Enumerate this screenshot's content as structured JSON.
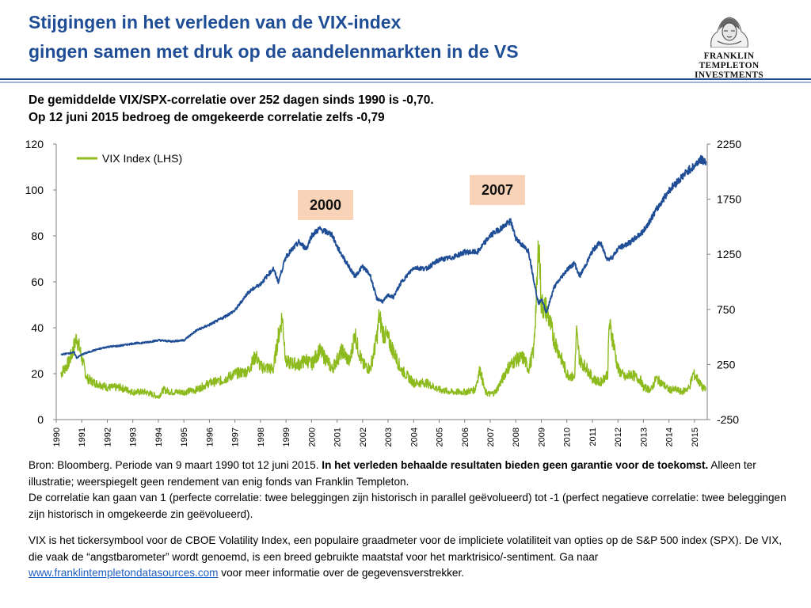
{
  "header": {
    "title_line1": "Stijgingen in het verleden van de VIX-index",
    "title_line2": "gingen samen met druk op de aandelenmarkten in de VS",
    "logo_line1": "FRANKLIN TEMPLETON",
    "logo_line2": "INVESTMENTS"
  },
  "subtitle": {
    "line1": "De gemiddelde VIX/SPX-correlatie  over 252 dagen sinds 1990 is -0,70.",
    "line2": "Op 12 juni 2015 bedroeg de omgekeerde correlatie zelfs -0,79"
  },
  "chart_data": {
    "type": "line",
    "legend": [
      "VIX Index  (LHS)"
    ],
    "legend_position": "top-left",
    "x_ticks": [
      "1990",
      "1991",
      "1992",
      "1993",
      "1994",
      "1995",
      "1996",
      "1997",
      "1998",
      "1999",
      "2000",
      "2001",
      "2002",
      "2003",
      "2004",
      "2005",
      "2006",
      "2007",
      "2008",
      "2009",
      "2010",
      "2011",
      "2012",
      "2013",
      "2014",
      "2015"
    ],
    "y_left": {
      "ticks": [
        0,
        20,
        40,
        60,
        80,
        100,
        120
      ],
      "range": [
        0,
        120
      ]
    },
    "y_right": {
      "ticks": [
        -250,
        250,
        750,
        1250,
        1750,
        2250
      ],
      "range": [
        -250,
        2250
      ]
    },
    "annotations": [
      "2000",
      "2007"
    ],
    "colors": {
      "vix": "#8dbb1e",
      "spx": "#1f4e96"
    },
    "series": [
      {
        "name": "VIX Index  (LHS)",
        "axis": "left",
        "x": [
          1990.18,
          1990.5,
          1990.65,
          1990.8,
          1991.0,
          1991.2,
          1991.5,
          1991.8,
          1992.0,
          1992.5,
          1993.0,
          1993.5,
          1994.0,
          1994.2,
          1994.5,
          1995.0,
          1995.5,
          1996.0,
          1996.5,
          1997.0,
          1997.5,
          1997.82,
          1998.0,
          1998.5,
          1998.7,
          1998.85,
          1999.0,
          1999.5,
          1999.8,
          2000.0,
          2000.3,
          2000.6,
          2000.8,
          2001.0,
          2001.2,
          2001.5,
          2001.7,
          2001.8,
          2002.0,
          2002.3,
          2002.55,
          2002.65,
          2002.8,
          2003.0,
          2003.2,
          2003.5,
          2004.0,
          2004.5,
          2005.0,
          2005.5,
          2005.8,
          2006.0,
          2006.4,
          2006.6,
          2006.8,
          2007.0,
          2007.2,
          2007.5,
          2007.65,
          2007.9,
          2008.0,
          2008.3,
          2008.5,
          2008.7,
          2008.84,
          2008.9,
          2009.0,
          2009.2,
          2009.5,
          2009.8,
          2010.0,
          2010.3,
          2010.38,
          2010.5,
          2010.8,
          2011.0,
          2011.3,
          2011.6,
          2011.66,
          2011.8,
          2012.0,
          2012.3,
          2012.5,
          2012.9,
          2013.0,
          2013.3,
          2013.5,
          2013.9,
          2014.0,
          2014.3,
          2014.5,
          2014.8,
          2014.95,
          2015.1,
          2015.3,
          2015.45
        ],
        "y": [
          20,
          25,
          30,
          36,
          27,
          18,
          16,
          15,
          14,
          14,
          12,
          12,
          10,
          13,
          12,
          12,
          13,
          16,
          17,
          20,
          21,
          28,
          23,
          22,
          36,
          45,
          25,
          24,
          26,
          24,
          30,
          26,
          22,
          26,
          30,
          25,
          38,
          32,
          24,
          22,
          35,
          45,
          38,
          35,
          30,
          22,
          16,
          16,
          13,
          12,
          12,
          12,
          13,
          22,
          12,
          11,
          12,
          18,
          22,
          25,
          26,
          27,
          22,
          30,
          60,
          80,
          50,
          48,
          35,
          26,
          20,
          18,
          38,
          26,
          22,
          18,
          16,
          20,
          42,
          35,
          22,
          18,
          20,
          17,
          14,
          13,
          18,
          14,
          13,
          13,
          12,
          14,
          20,
          18,
          14,
          13
        ]
      },
      {
        "name": "SPX",
        "axis": "right",
        "x": [
          1990.18,
          1990.7,
          1990.8,
          1991.0,
          1991.5,
          1992.0,
          1992.5,
          1993.0,
          1993.5,
          1994.0,
          1994.5,
          1995.0,
          1995.5,
          1996.0,
          1996.5,
          1997.0,
          1997.5,
          1997.8,
          1998.0,
          1998.5,
          1998.7,
          1999.0,
          1999.5,
          1999.8,
          2000.0,
          2000.3,
          2000.6,
          2000.8,
          2001.0,
          2001.3,
          2001.7,
          2002.0,
          2002.3,
          2002.55,
          2002.8,
          2003.0,
          2003.2,
          2003.5,
          2004.0,
          2004.5,
          2005.0,
          2005.5,
          2006.0,
          2006.5,
          2007.0,
          2007.5,
          2007.8,
          2008.0,
          2008.3,
          2008.5,
          2008.8,
          2008.9,
          2009.0,
          2009.2,
          2009.5,
          2010.0,
          2010.3,
          2010.5,
          2010.8,
          2011.0,
          2011.3,
          2011.6,
          2011.8,
          2012.0,
          2012.5,
          2013.0,
          2013.5,
          2014.0,
          2014.5,
          2014.8,
          2015.0,
          2015.2,
          2015.45
        ],
        "y": [
          340,
          360,
          310,
          340,
          380,
          410,
          420,
          440,
          450,
          470,
          460,
          470,
          560,
          610,
          670,
          740,
          900,
          950,
          980,
          1120,
          1000,
          1230,
          1360,
          1300,
          1420,
          1480,
          1450,
          1430,
          1320,
          1200,
          1050,
          1140,
          1060,
          850,
          820,
          880,
          860,
          990,
          1130,
          1120,
          1200,
          1220,
          1270,
          1270,
          1420,
          1500,
          1550,
          1400,
          1320,
          1280,
          900,
          800,
          850,
          720,
          950,
          1110,
          1170,
          1050,
          1180,
          1280,
          1360,
          1200,
          1230,
          1300,
          1360,
          1460,
          1650,
          1830,
          1950,
          2020,
          2050,
          2110,
          2095
        ]
      }
    ]
  },
  "footer": {
    "source_prefix": "Bron: Bloomberg.  Periode van 9 maart 1990 tot 12 juni 2015. ",
    "source_bold": "In het verleden behaalde resultaten bieden geen garantie voor de toekomst.",
    "source_suffix": " Alleen ter illustratie; weerspiegelt geen rendement van enig fonds van Franklin Templeton.",
    "correlation_note": "De correlatie kan gaan van 1 (perfecte correlatie: twee beleggingen zijn historisch in parallel geëvolueerd) tot -1 (perfect negatieve correlatie: twee beleggingen zijn historisch in omgekeerde zin geëvolueerd).",
    "vix_note_prefix": "VIX is het tickersymbool voor de CBOE  Volatility Index, een populaire graadmeter voor de impliciete volatiliteit van opties op de S&P 500 index (SPX). De VIX, die vaak de “angstbarometer” wordt genoemd, is een breed gebruikte maatstaf voor het marktrisico/-sentiment. Ga naar ",
    "vix_note_link": "www.franklintempletondatasources.com",
    "vix_note_suffix": " voor meer informatie over de gegevensverstrekker."
  }
}
